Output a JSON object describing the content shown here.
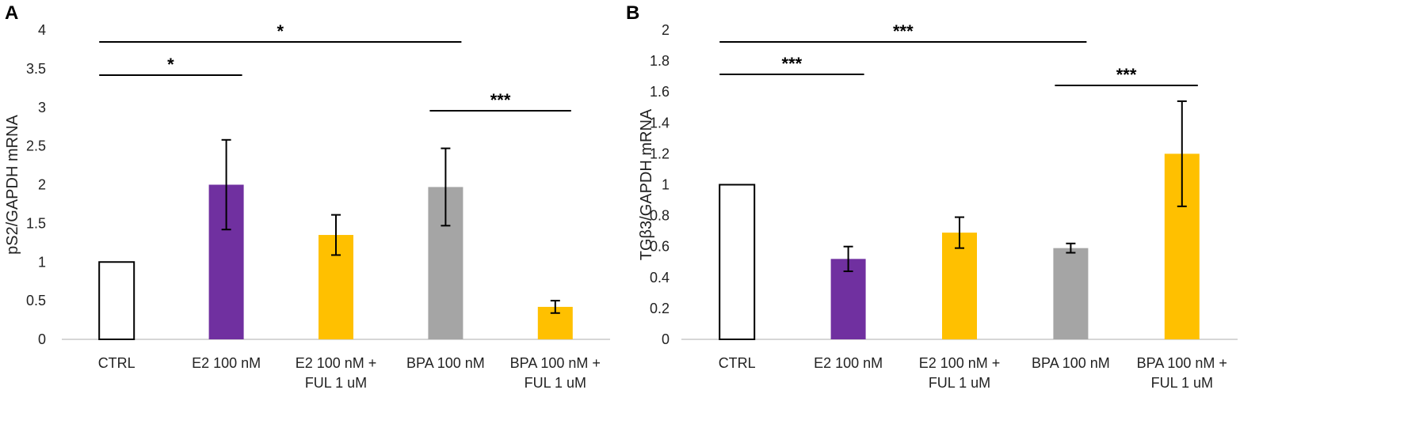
{
  "chart_data": [
    {
      "panel": "A",
      "type": "bar",
      "title": "",
      "xlabel": "",
      "ylabel": "pS2/GAPDH mRNA",
      "ylim": [
        0,
        4
      ],
      "yticks": [
        "0",
        "0.5",
        "1",
        "1.5",
        "2",
        "2.5",
        "3",
        "3.5",
        "4"
      ],
      "categories": [
        [
          "CTRL"
        ],
        [
          "E2 100 nM"
        ],
        [
          "E2 100 nM +",
          "FUL 1 uM"
        ],
        [
          "BPA 100 nM"
        ],
        [
          "BPA 100 nM +",
          "FUL 1 uM"
        ]
      ],
      "values": [
        1.0,
        2.0,
        1.35,
        1.97,
        0.42
      ],
      "errors": [
        0,
        0.58,
        0.26,
        0.5,
        0.08
      ],
      "colors": [
        "#ffffff",
        "#7030a0",
        "#ffc000",
        "#a5a5a5",
        "#ffc000"
      ],
      "significance": [
        {
          "from": 0,
          "to": 1,
          "label": "*"
        },
        {
          "from": 0,
          "to": 3,
          "label": "*"
        },
        {
          "from": 3,
          "to": 4,
          "label": "***"
        }
      ]
    },
    {
      "panel": "B",
      "type": "bar",
      "title": "",
      "xlabel": "",
      "ylabel": "TGβ3/GAPDH mRNA",
      "ylim": [
        0,
        2
      ],
      "yticks": [
        "0",
        "0.2",
        "0.4",
        "0.6",
        "0.8",
        "1",
        "1.2",
        "1.4",
        "1.6",
        "1.8",
        "2"
      ],
      "categories": [
        [
          "CTRL"
        ],
        [
          "E2 100 nM"
        ],
        [
          "E2 100 nM +",
          "FUL 1 uM"
        ],
        [
          "BPA 100 nM"
        ],
        [
          "BPA 100 nM +",
          "FUL 1 uM"
        ]
      ],
      "values": [
        1.0,
        0.52,
        0.69,
        0.59,
        1.2
      ],
      "errors": [
        0,
        0.08,
        0.1,
        0.03,
        0.34
      ],
      "colors": [
        "#ffffff",
        "#7030a0",
        "#ffc000",
        "#a5a5a5",
        "#ffc000"
      ],
      "significance": [
        {
          "from": 0,
          "to": 1,
          "label": "***"
        },
        {
          "from": 0,
          "to": 3,
          "label": "***"
        },
        {
          "from": 3,
          "to": 4,
          "label": "***"
        }
      ]
    }
  ]
}
